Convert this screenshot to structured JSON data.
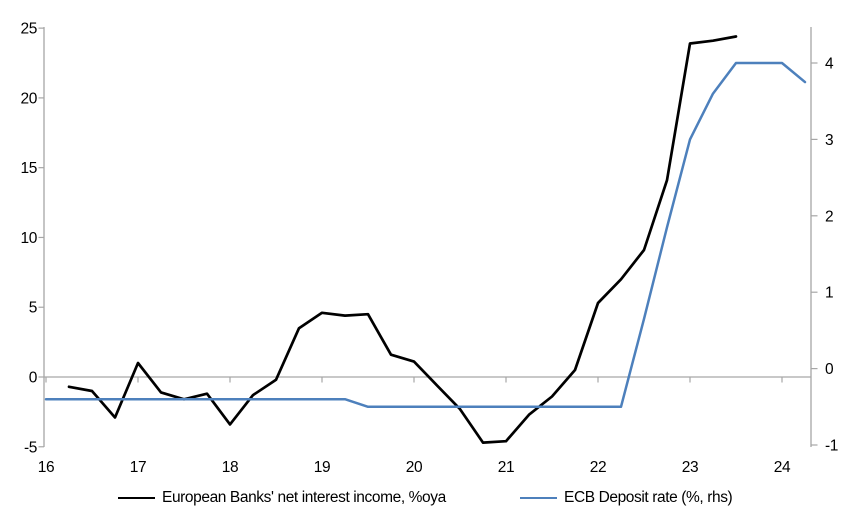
{
  "chart": {
    "background": "#ffffff",
    "axis_color": "#a6a6a6",
    "text_color": "#000000"
  },
  "axes": {
    "left": {
      "ticks": [
        25,
        20,
        15,
        10,
        5,
        0,
        -5
      ],
      "range": [
        -5,
        25
      ]
    },
    "right": {
      "ticks": [
        4,
        3,
        2,
        1,
        0,
        -1
      ],
      "range": [
        -1,
        4.45
      ]
    },
    "x": {
      "ticks": [
        16,
        17,
        18,
        19,
        20,
        21,
        22,
        23,
        24
      ]
    }
  },
  "legend": {
    "items": [
      {
        "label": "European Banks' net interest income, %oya",
        "color": "#000000"
      },
      {
        "label": "ECB Deposit rate (%, rhs)",
        "color": "#4d80bc"
      }
    ]
  },
  "chart_data": {
    "type": "line",
    "title": "",
    "xlabel": "",
    "ylabel_left": "",
    "ylabel_right": "",
    "grid": "zero-line-only",
    "legend_position": "bottom",
    "x_range": [
      16,
      24.3
    ],
    "left_ylim": [
      -5,
      25
    ],
    "right_ylim": [
      -1,
      4.45
    ],
    "series": [
      {
        "name": "European Banks' net interest income, %oya",
        "axis": "left",
        "color": "#000000",
        "width": 2.7,
        "x": [
          16.25,
          16.5,
          16.75,
          17.0,
          17.25,
          17.5,
          17.75,
          18.0,
          18.25,
          18.5,
          18.75,
          19.0,
          19.25,
          19.5,
          19.75,
          20.0,
          20.25,
          20.5,
          20.75,
          21.0,
          21.25,
          21.5,
          21.75,
          22.0,
          22.25,
          22.5,
          22.75,
          23.0,
          23.25,
          23.5
        ],
        "y": [
          -0.7,
          -1.0,
          -2.9,
          1.0,
          -1.1,
          -1.6,
          -1.2,
          -3.4,
          -1.3,
          -0.2,
          3.5,
          4.6,
          4.4,
          4.5,
          1.6,
          1.1,
          -0.6,
          -2.3,
          -4.7,
          -4.6,
          -2.7,
          -1.4,
          0.5,
          5.3,
          7.0,
          9.1,
          14.1,
          23.9,
          24.1,
          24.4
        ]
      },
      {
        "name": "ECB Deposit rate (%, rhs)",
        "axis": "right",
        "color": "#4d80bc",
        "width": 2.5,
        "x": [
          16.0,
          16.25,
          16.5,
          16.75,
          17.0,
          17.25,
          17.5,
          17.75,
          18.0,
          18.25,
          18.5,
          18.75,
          19.0,
          19.25,
          19.5,
          19.75,
          20.0,
          20.25,
          20.5,
          20.75,
          21.0,
          21.25,
          21.5,
          21.75,
          22.0,
          22.25,
          22.5,
          22.75,
          23.0,
          23.25,
          23.5,
          23.75,
          24.0,
          24.25
        ],
        "y": [
          -0.4,
          -0.4,
          -0.4,
          -0.4,
          -0.4,
          -0.4,
          -0.4,
          -0.4,
          -0.4,
          -0.4,
          -0.4,
          -0.4,
          -0.4,
          -0.4,
          -0.5,
          -0.5,
          -0.5,
          -0.5,
          -0.5,
          -0.5,
          -0.5,
          -0.5,
          -0.5,
          -0.5,
          -0.5,
          -0.5,
          0.65,
          1.85,
          3.0,
          3.6,
          4.0,
          4.0,
          4.0,
          3.75
        ]
      }
    ]
  }
}
